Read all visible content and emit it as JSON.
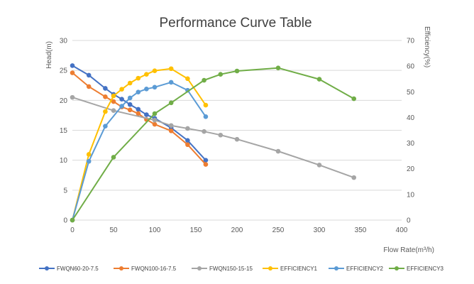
{
  "chart_data": {
    "type": "line",
    "title": "Performance Curve Table",
    "xlabel": "Flow Rate(m³/h)",
    "ylabel": "Head(m)",
    "y2label": "Efficiency(%)",
    "xlim": [
      0,
      400
    ],
    "ylim": [
      0,
      30
    ],
    "y2lim": [
      0,
      70
    ],
    "x_ticks": [
      0,
      50,
      100,
      150,
      200,
      250,
      300,
      350,
      400
    ],
    "y_ticks": [
      0,
      5,
      10,
      15,
      20,
      25,
      30
    ],
    "y2_ticks": [
      0,
      10,
      20,
      30,
      40,
      50,
      60,
      70
    ],
    "grid": true,
    "legend_position": "bottom",
    "series": [
      {
        "name": "FWQN60-20-7.5",
        "axis": "left",
        "color": "#4472c4",
        "x": [
          0,
          20,
          40,
          50,
          60,
          70,
          80,
          90,
          100,
          120,
          140,
          162
        ],
        "y": [
          25.8,
          24.2,
          22.0,
          21.0,
          20.2,
          19.3,
          18.5,
          17.6,
          17.0,
          15.4,
          13.3,
          10.0
        ]
      },
      {
        "name": "FWQN100-16-7.5",
        "axis": "left",
        "color": "#ed7d31",
        "x": [
          0,
          20,
          40,
          50,
          60,
          70,
          80,
          90,
          100,
          120,
          140,
          162
        ],
        "y": [
          24.6,
          22.3,
          20.6,
          19.8,
          18.9,
          18.4,
          17.8,
          16.8,
          16.0,
          14.9,
          12.6,
          9.3
        ]
      },
      {
        "name": "FWQN150-15-15",
        "axis": "left",
        "color": "#a5a5a5",
        "x": [
          0,
          50,
          100,
          120,
          140,
          160,
          180,
          200,
          250,
          300,
          342
        ],
        "y": [
          20.5,
          18.3,
          16.7,
          15.8,
          15.3,
          14.8,
          14.2,
          13.5,
          11.5,
          9.2,
          7.1
        ]
      },
      {
        "name": "EFFICIENCY1",
        "axis": "right",
        "color": "#ffc000",
        "x": [
          0,
          20,
          40,
          50,
          60,
          70,
          80,
          90,
          100,
          120,
          140,
          162
        ],
        "y": [
          0,
          25.6,
          42.3,
          48.4,
          51.0,
          53.4,
          55.3,
          56.8,
          58.2,
          59.0,
          55.1,
          44.8
        ]
      },
      {
        "name": "EFFICIENCY2",
        "axis": "right",
        "color": "#5b9bd5",
        "x": [
          0,
          20,
          40,
          60,
          70,
          80,
          90,
          100,
          120,
          140,
          162
        ],
        "y": [
          0,
          22.9,
          36.6,
          44.4,
          47.6,
          49.9,
          51.1,
          51.8,
          53.7,
          50.6,
          40.3
        ]
      },
      {
        "name": "EFFICIENCY3",
        "axis": "right",
        "color": "#70ad47",
        "x": [
          0,
          50,
          100,
          120,
          160,
          180,
          200,
          250,
          300,
          342
        ],
        "y": [
          0,
          24.5,
          41.5,
          45.7,
          54.5,
          56.8,
          58.1,
          59.3,
          54.9,
          47.3
        ]
      }
    ]
  }
}
